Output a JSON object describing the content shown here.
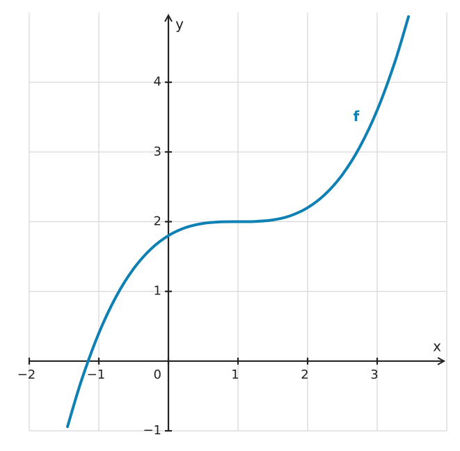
{
  "chart_data": {
    "type": "line",
    "x_label": "x",
    "y_label": "y",
    "xlim": [
      -2,
      4
    ],
    "ylim": [
      -1,
      5
    ],
    "xticks": [
      {
        "value": -2,
        "label": "−2"
      },
      {
        "value": -1,
        "label": "−1"
      },
      0,
      1,
      2,
      3
    ],
    "yticks": [
      {
        "value": -1,
        "label": "−1"
      },
      1,
      2,
      3,
      4
    ],
    "grid": true,
    "x": [
      -1.45,
      -1.25,
      -1,
      -0.75,
      -0.5,
      -0.25,
      0,
      0.25,
      0.5,
      0.75,
      1,
      1.25,
      1.5,
      1.75,
      2,
      2.25,
      2.5,
      2.75,
      3,
      3.25,
      3.45
    ],
    "series": [
      {
        "name": "f",
        "color": "#0e80b3",
        "values": [
          -0.941,
          -0.278,
          0.4,
          0.928,
          1.325,
          1.609,
          1.8,
          1.916,
          1.975,
          1.997,
          2,
          2.003,
          2.025,
          2.084,
          2.2,
          2.391,
          2.675,
          3.072,
          3.6,
          4.278,
          4.941
        ]
      }
    ]
  }
}
